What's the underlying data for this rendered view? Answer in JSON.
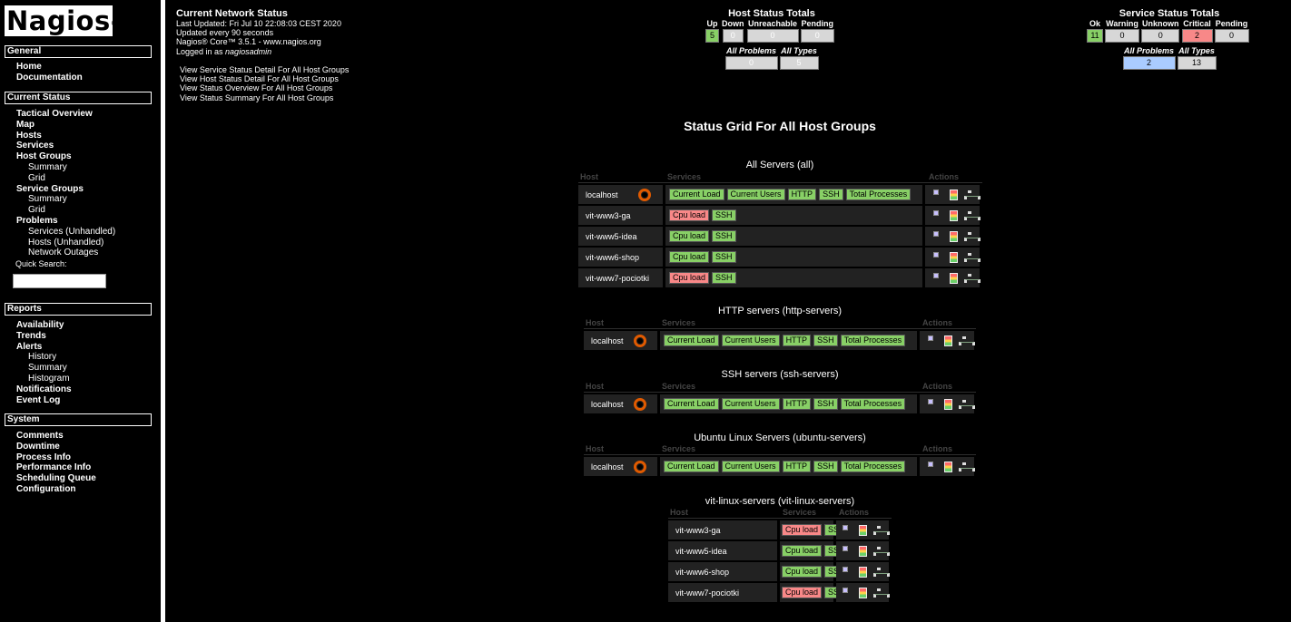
{
  "logo": "Nagios",
  "logo_reg": "®",
  "sidebar": {
    "general": {
      "title": "General",
      "items": [
        "Home",
        "Documentation"
      ]
    },
    "current_status": {
      "title": "Current Status",
      "items": [
        "Tactical Overview",
        "Map",
        "Hosts",
        "Services",
        "Host Groups",
        "Summary",
        "Grid",
        "Service Groups",
        "Summary",
        "Grid",
        "Problems",
        "Services (Unhandled)",
        "Hosts (Unhandled)",
        "Network Outages"
      ],
      "quick_search_label": "Quick Search:"
    },
    "reports": {
      "title": "Reports",
      "items": [
        "Availability",
        "Trends",
        "Alerts",
        "History",
        "Summary",
        "Histogram",
        "Notifications",
        "Event Log"
      ]
    },
    "system": {
      "title": "System",
      "items": [
        "Comments",
        "Downtime",
        "Process Info",
        "Performance Info",
        "Scheduling Queue",
        "Configuration"
      ]
    }
  },
  "header": {
    "title": "Current Network Status",
    "last_updated": "Last Updated: Fri Jul 10 22:08:03 CEST 2020",
    "update_interval": "Updated every 90 seconds",
    "version": "Nagios® Core™ 3.5.1 - www.nagios.org",
    "logged_in_prefix": "Logged in as ",
    "user": "nagiosadmin",
    "links": [
      "View Service Status Detail For All Host Groups",
      "View Host Status Detail For All Host Groups",
      "View Status Overview For All Host Groups",
      "View Status Summary For All Host Groups"
    ]
  },
  "host_totals": {
    "title": "Host Status Totals",
    "labels": [
      "Up",
      "Down",
      "Unreachable",
      "Pending"
    ],
    "values": [
      "5",
      "0",
      "0",
      "0"
    ],
    "sub_labels": [
      "All Problems",
      "All Types"
    ],
    "sub_values": [
      "0",
      "5"
    ]
  },
  "service_totals": {
    "title": "Service Status Totals",
    "labels": [
      "Ok",
      "Warning",
      "Unknown",
      "Critical",
      "Pending"
    ],
    "values": [
      "11",
      "0",
      "0",
      "2",
      "0"
    ],
    "sub_labels": [
      "All Problems",
      "All Types"
    ],
    "sub_values": [
      "2",
      "13"
    ]
  },
  "page_title": "Status Grid For All Host Groups",
  "columns": {
    "host": "Host",
    "services": "Services",
    "actions": "Actions"
  },
  "groups": [
    {
      "title": "All Servers (all)",
      "hosts": [
        {
          "name": "localhost",
          "services": [
            "Current Load",
            "Current Users",
            "HTTP",
            "SSH",
            "Total Processes"
          ]
        },
        {
          "name": "vit-www3-ga",
          "services": [
            "Cpu load",
            "SSH"
          ]
        },
        {
          "name": "vit-www5-idea",
          "services": [
            "Cpu load",
            "SSH"
          ]
        },
        {
          "name": "vit-www6-shop",
          "services": [
            "Cpu load",
            "SSH"
          ]
        },
        {
          "name": "vit-www7-pociotki",
          "services": [
            "Cpu load",
            "SSH"
          ]
        }
      ]
    },
    {
      "title": "HTTP servers (http-servers)",
      "hosts": [
        {
          "name": "localhost",
          "services": [
            "Current Load",
            "Current Users",
            "HTTP",
            "SSH",
            "Total Processes"
          ]
        }
      ]
    },
    {
      "title": "SSH servers (ssh-servers)",
      "hosts": [
        {
          "name": "localhost",
          "services": [
            "Current Load",
            "Current Users",
            "HTTP",
            "SSH",
            "Total Processes"
          ]
        }
      ]
    },
    {
      "title": "Ubuntu Linux Servers (ubuntu-servers)",
      "hosts": [
        {
          "name": "localhost",
          "services": [
            "Current Load",
            "Current Users",
            "HTTP",
            "SSH",
            "Total Processes"
          ]
        }
      ]
    },
    {
      "title": "vit-linux-servers (vit-linux-servers)",
      "hosts": [
        {
          "name": "vit-www3-ga",
          "services": [
            "Cpu load",
            "SSH"
          ]
        },
        {
          "name": "vit-www5-idea",
          "services": [
            "Cpu load",
            "SSH"
          ]
        },
        {
          "name": "vit-www6-shop",
          "services": [
            "Cpu load",
            "SSH"
          ]
        },
        {
          "name": "vit-www7-pociotki",
          "services": [
            "Cpu load",
            "SSH"
          ]
        }
      ]
    }
  ],
  "colors": {
    "ok": "#88d066",
    "critical": "#f88888",
    "neutral": "#d7d7d7",
    "problems": "#aaccff"
  }
}
